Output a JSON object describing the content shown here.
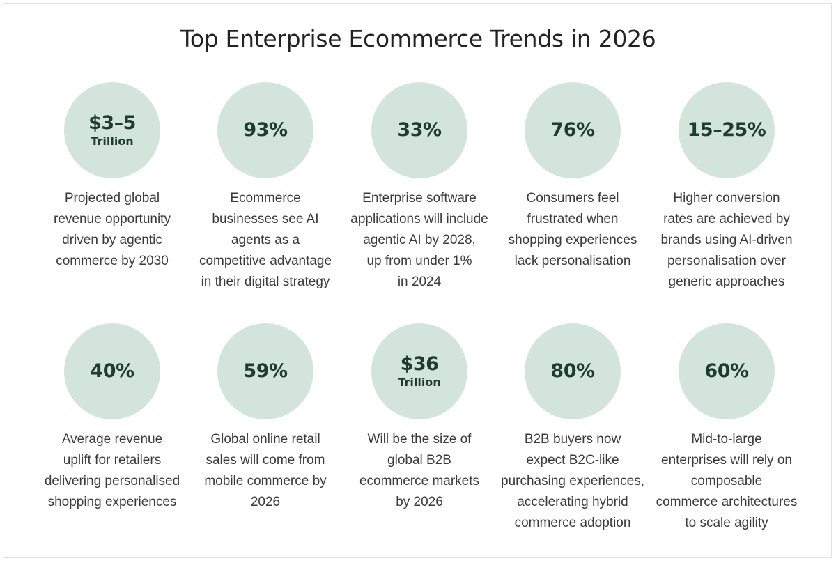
{
  "title": "Top Enterprise Ecommerce Trends in 2026",
  "colors": {
    "circle": "#d3e4dd",
    "stat_text": "#1f3d2f",
    "body_text": "#3a3a3a"
  },
  "stats": [
    {
      "value": "$3–5",
      "unit": "Trillion",
      "description": "Projected global\nrevenue opportunity\ndriven by agentic\ncommerce by 2030"
    },
    {
      "value": "93%",
      "unit": "",
      "description": "Ecommerce\nbusinesses see AI\nagents as a\ncompetitive advantage\nin their digital strategy"
    },
    {
      "value": "33%",
      "unit": "",
      "description": "Enterprise software\napplications will include\nagentic AI by 2028,\nup from under 1%\nin 2024"
    },
    {
      "value": "76%",
      "unit": "",
      "description": "Consumers feel\nfrustrated when\nshopping experiences\nlack personalisation"
    },
    {
      "value": "15–25%",
      "unit": "",
      "description": "Higher conversion\nrates are achieved by\nbrands using AI-driven\npersonalisation over\ngeneric approaches"
    },
    {
      "value": "40%",
      "unit": "",
      "description": "Average revenue\nuplift for retailers\ndelivering personalised\nshopping experiences"
    },
    {
      "value": "59%",
      "unit": "",
      "description": "Global online retail\nsales will come from\nmobile commerce by\n2026"
    },
    {
      "value": "$36",
      "unit": "Trillion",
      "description": "Will be the size of\nglobal B2B\necommerce markets\nby 2026"
    },
    {
      "value": "80%",
      "unit": "",
      "description": "B2B buyers now\nexpect B2C-like\npurchasing experiences,\naccelerating hybrid\ncommerce adoption"
    },
    {
      "value": "60%",
      "unit": "",
      "description": "Mid-to-large\nenterprises will rely on\ncomposable\ncommerce architectures\nto scale agility"
    }
  ]
}
